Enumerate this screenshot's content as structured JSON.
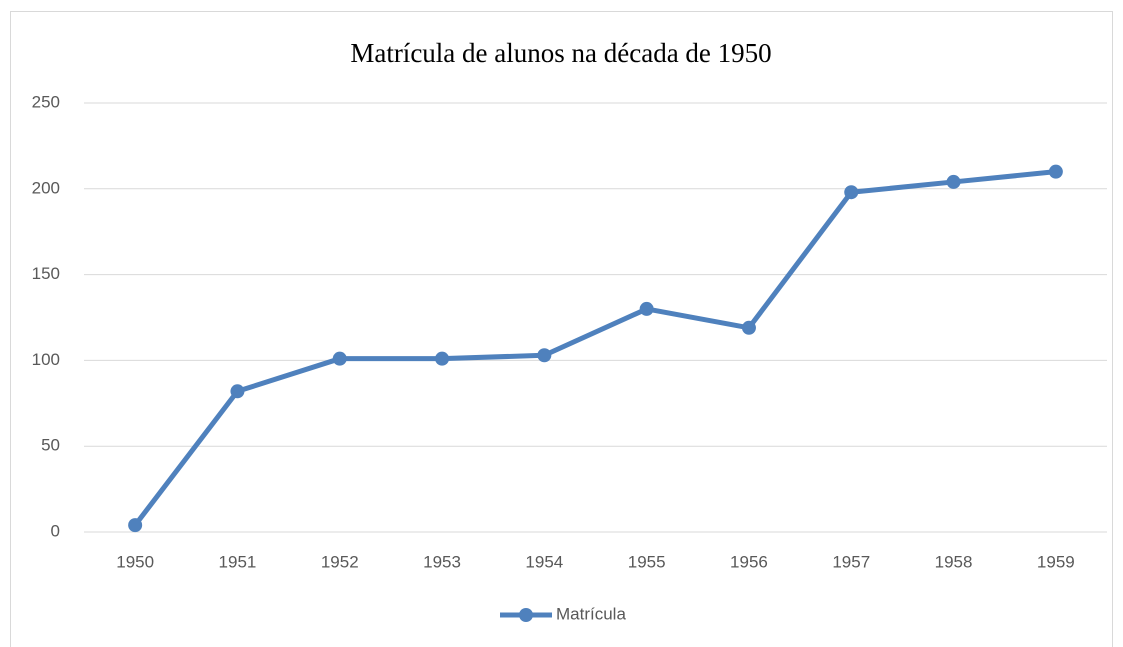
{
  "chart_data": {
    "type": "line",
    "title": "Matrícula de alunos na década de 1950",
    "categories": [
      "1950",
      "1951",
      "1952",
      "1953",
      "1954",
      "1955",
      "1956",
      "1957",
      "1958",
      "1959"
    ],
    "series": [
      {
        "name": "Matrícula",
        "color": "#4f81bd",
        "values": [
          4,
          82,
          101,
          101,
          103,
          130,
          119,
          198,
          204,
          210
        ]
      }
    ],
    "ylim": [
      0,
      250
    ],
    "yticks": [
      0,
      50,
      100,
      150,
      200,
      250
    ],
    "grid": true,
    "legend": "bottom"
  }
}
